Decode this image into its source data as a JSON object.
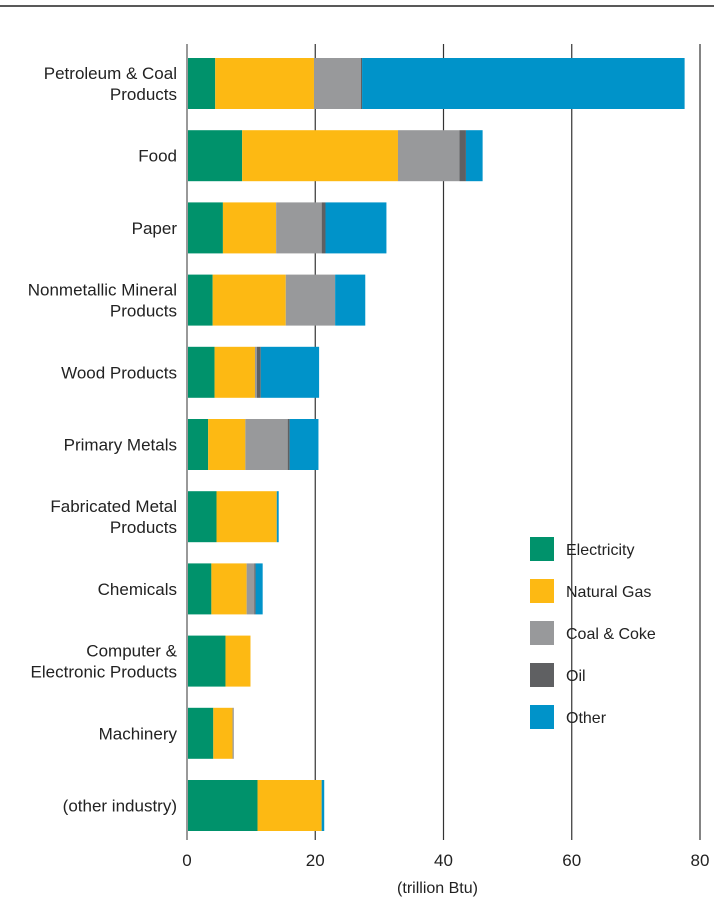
{
  "chart_data": {
    "type": "bar",
    "orientation": "horizontal",
    "stacked": true,
    "title": "",
    "xlabel": "(trillion Btu)",
    "ylabel": "",
    "xlim": [
      0,
      80
    ],
    "x_ticks": [
      "0",
      "20",
      "40",
      "60",
      "80"
    ],
    "grid": true,
    "legend_position": "right",
    "categories": [
      "Petroleum & Coal Products",
      "Food",
      "Paper",
      "Nonmetallic Mineral Products",
      "Wood Products",
      "Primary Metals",
      "Fabricated Metal Products",
      "Chemicals",
      "Computer & Electronic Products",
      "Machinery",
      "(other industry)"
    ],
    "category_lines": [
      [
        "Petroleum & Coal",
        "Products"
      ],
      [
        "Food"
      ],
      [
        "Paper"
      ],
      [
        "Nonmetallic Mineral",
        "Products"
      ],
      [
        "Wood Products"
      ],
      [
        "Primary Metals"
      ],
      [
        "Fabricated Metal",
        "Products"
      ],
      [
        "Chemicals"
      ],
      [
        "Computer &",
        "Electronic Products"
      ],
      [
        "Machinery"
      ],
      [
        "(other industry)"
      ]
    ],
    "series": [
      {
        "name": "Electricity",
        "color": "#00926b",
        "values": [
          4.4,
          8.6,
          5.6,
          4.0,
          4.3,
          3.3,
          4.6,
          3.8,
          6.0,
          4.1,
          11.0
        ]
      },
      {
        "name": "Natural Gas",
        "color": "#fdb913",
        "values": [
          15.4,
          24.3,
          8.3,
          11.4,
          6.3,
          5.8,
          9.4,
          5.5,
          3.9,
          3.0,
          10.0
        ]
      },
      {
        "name": "Coal & Coke",
        "color": "#98999b",
        "values": [
          7.3,
          9.6,
          7.1,
          7.7,
          0.3,
          6.6,
          0,
          1.2,
          0,
          0.2,
          0
        ]
      },
      {
        "name": "Oil",
        "color": "#5f6062",
        "values": [
          0.2,
          1.0,
          0.6,
          0,
          0.6,
          0.3,
          0,
          0.2,
          0,
          0,
          0
        ]
      },
      {
        "name": "Other",
        "color": "#0093c9",
        "values": [
          50.3,
          2.6,
          9.5,
          4.7,
          9.1,
          4.5,
          0.3,
          1.1,
          0,
          0,
          0.4
        ]
      }
    ]
  }
}
